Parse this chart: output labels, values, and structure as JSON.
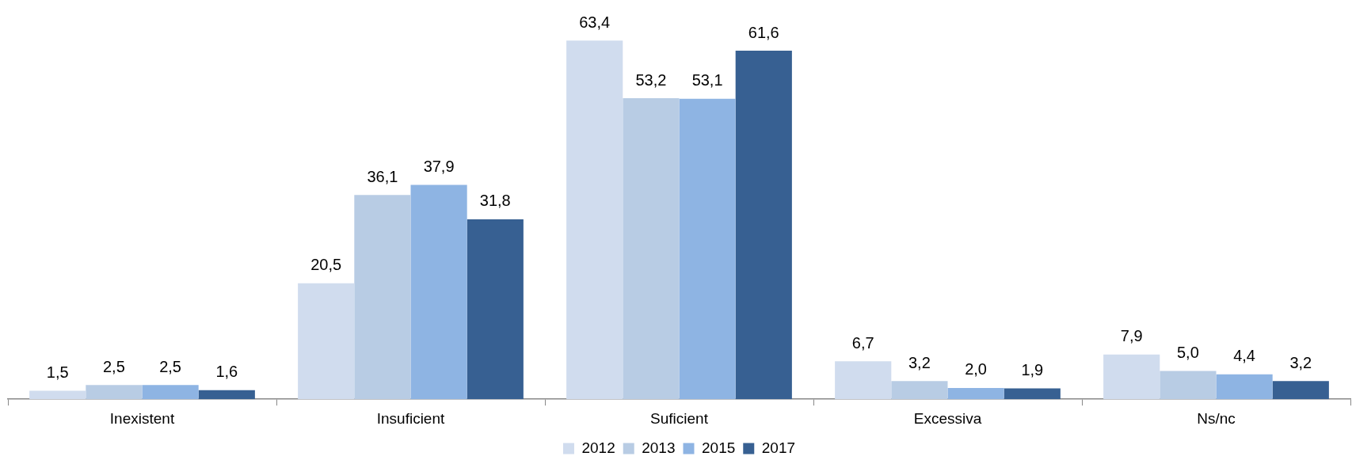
{
  "chart_data": {
    "type": "bar",
    "categories": [
      "Inexistent",
      "Insuficient",
      "Suficient",
      "Excessiva",
      "Ns/nc"
    ],
    "series": [
      {
        "name": "2012",
        "color": "#d0dcee",
        "values": [
          1.5,
          20.5,
          63.4,
          6.7,
          7.9
        ],
        "value_labels": [
          "1,5",
          "20,5",
          "63,4",
          "6,7",
          "7,9"
        ]
      },
      {
        "name": "2013",
        "color": "#b8cce4",
        "values": [
          2.5,
          36.1,
          53.2,
          3.2,
          5.0
        ],
        "value_labels": [
          "2,5",
          "36,1",
          "53,2",
          "3,2",
          "5,0"
        ]
      },
      {
        "name": "2015",
        "color": "#8eb4e3",
        "values": [
          2.5,
          37.9,
          53.1,
          2.0,
          4.4
        ],
        "value_labels": [
          "2,5",
          "37,9",
          "53,1",
          "2,0",
          "4,4"
        ]
      },
      {
        "name": "2017",
        "color": "#376092",
        "values": [
          1.6,
          31.8,
          61.6,
          1.9,
          3.2
        ],
        "value_labels": [
          "1,6",
          "31,8",
          "61,6",
          "1,9",
          "3,2"
        ]
      }
    ],
    "legend": "bottom",
    "grid": false
  }
}
